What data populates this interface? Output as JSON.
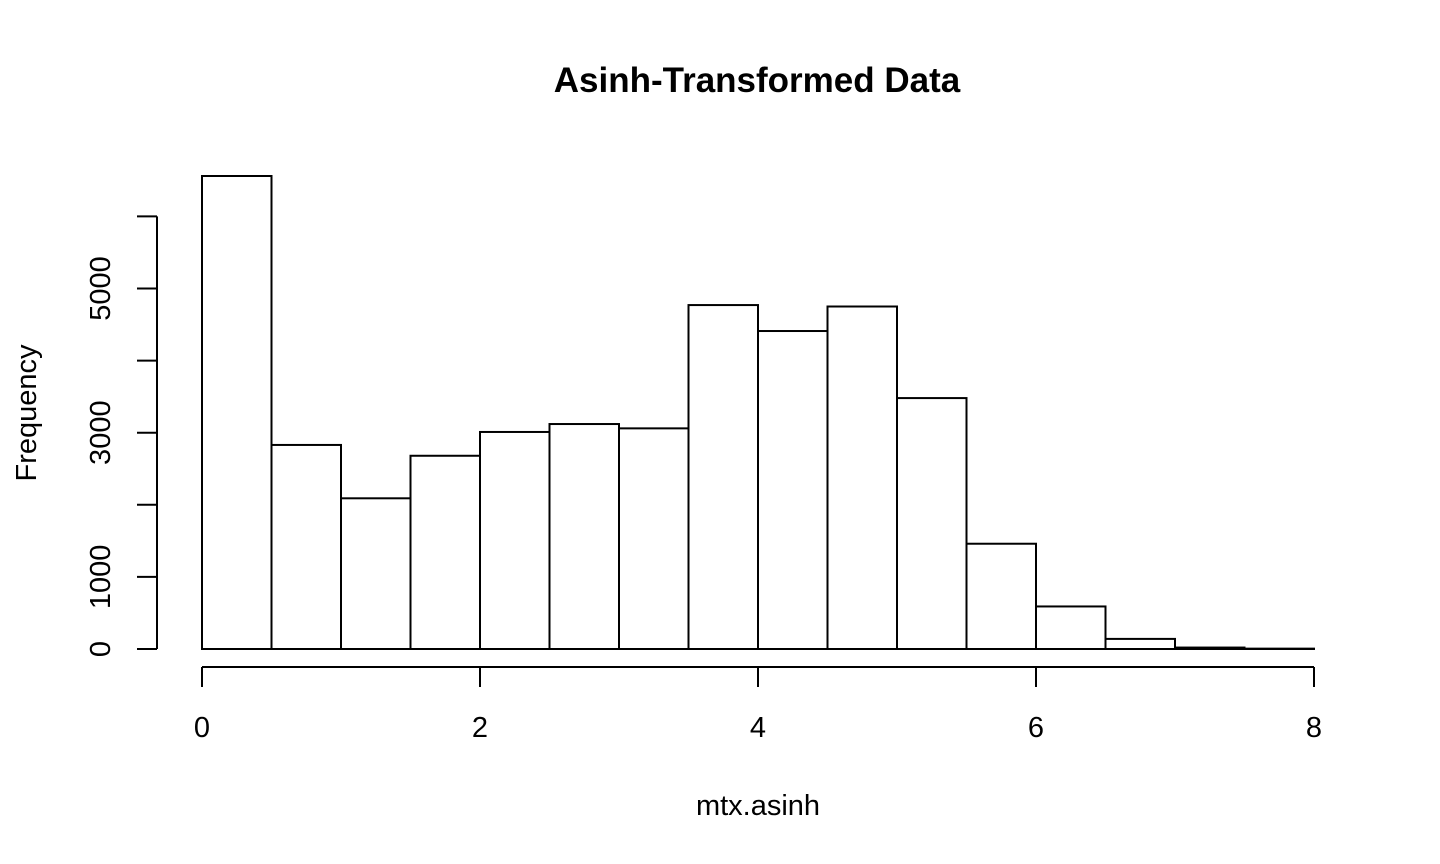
{
  "chart_data": {
    "type": "bar",
    "title": "Asinh-Transformed Data",
    "xlabel": "mtx.asinh",
    "ylabel": "Frequency",
    "bin_edges": [
      0,
      0.5,
      1,
      1.5,
      2,
      2.5,
      3,
      3.5,
      4,
      4.5,
      5,
      5.5,
      6,
      6.5,
      7,
      7.5,
      8
    ],
    "values": [
      6560,
      2830,
      2090,
      2680,
      3010,
      3120,
      3060,
      4770,
      4410,
      4750,
      3480,
      1460,
      590,
      140,
      20,
      5
    ],
    "xlim": [
      0,
      8
    ],
    "ylim": [
      0,
      6560
    ],
    "x_ticks": [
      0,
      2,
      4,
      6,
      8
    ],
    "y_ticks": [
      0,
      1000,
      2000,
      3000,
      4000,
      5000,
      6000
    ],
    "y_tick_labels": [
      {
        "value": 0,
        "label": "0"
      },
      {
        "value": 1000,
        "label": "1000"
      },
      {
        "value": 3000,
        "label": "3000"
      },
      {
        "value": 5000,
        "label": "5000"
      }
    ],
    "x_tick_labels": [
      {
        "value": 0,
        "label": "0"
      },
      {
        "value": 2,
        "label": "2"
      },
      {
        "value": 4,
        "label": "4"
      },
      {
        "value": 6,
        "label": "6"
      },
      {
        "value": 8,
        "label": "8"
      }
    ],
    "grid": false,
    "legend": "none",
    "colors": {
      "bar_fill": "#ffffff",
      "bar_stroke": "#000000"
    }
  }
}
